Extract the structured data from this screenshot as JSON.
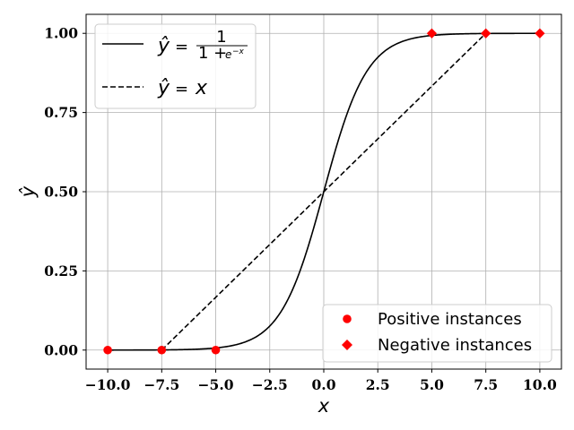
{
  "chart_data": {
    "type": "line",
    "xlabel": "x",
    "ylabel": "ŷ",
    "xlim": [
      -11.0,
      11.0
    ],
    "ylim": [
      -0.06,
      1.06
    ],
    "grid": true,
    "x_ticks": [
      -10.0,
      -7.5,
      -5.0,
      -2.5,
      0.0,
      2.5,
      5.0,
      7.5,
      10.0
    ],
    "x_tick_labels": [
      "−10.0",
      "−7.5",
      "−5.0",
      "−2.5",
      "0.0",
      "2.5",
      "5.0",
      "7.5",
      "10.0"
    ],
    "y_ticks": [
      0.0,
      0.25,
      0.5,
      0.75,
      1.0
    ],
    "y_tick_labels": [
      "0.00",
      "0.25",
      "0.50",
      "0.75",
      "1.00"
    ],
    "series": [
      {
        "name": "ŷ = 1/(1+e^−x)",
        "kind": "line",
        "style": "solid",
        "color": "#000000",
        "function": "sigmoid",
        "x_range": [
          -10,
          10
        ]
      },
      {
        "name": "ŷ = x",
        "kind": "line",
        "style": "dashed",
        "color": "#000000",
        "x": [
          -7.5,
          7.5
        ],
        "y": [
          0.0,
          1.0
        ]
      },
      {
        "name": "Positive instances",
        "kind": "scatter",
        "marker": "circle",
        "color": "#ff0000",
        "x": [
          -10.0,
          -7.5,
          -5.0
        ],
        "y": [
          0.0,
          0.0,
          0.0
        ]
      },
      {
        "name": "Negative instances",
        "kind": "scatter",
        "marker": "diamond",
        "color": "#ff0000",
        "x": [
          5.0,
          7.5,
          10.0
        ],
        "y": [
          1.0,
          1.0,
          1.0
        ]
      }
    ],
    "legends": {
      "upper": {
        "placement": "upper-left",
        "entries": [
          {
            "style": "solid",
            "lhs": "ŷ",
            "eq": "=",
            "num": "1",
            "den_prefix": "1 + ",
            "den_base": "e",
            "den_exp": "−x"
          },
          {
            "style": "dashed",
            "lhs": "ŷ",
            "eq": "=",
            "rhs": "x"
          }
        ]
      },
      "lower": {
        "placement": "lower-right",
        "entries": [
          {
            "marker": "circle",
            "label": "Positive instances"
          },
          {
            "marker": "diamond",
            "label": "Negative instances"
          }
        ]
      }
    }
  }
}
